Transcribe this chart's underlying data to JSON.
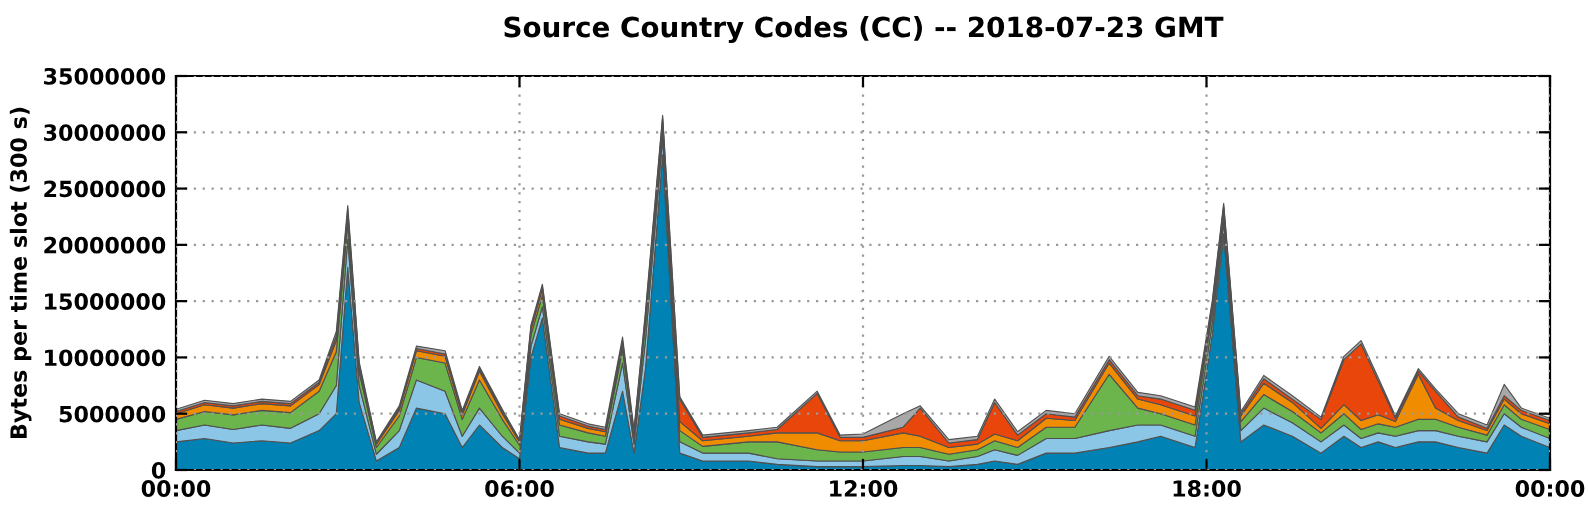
{
  "chart_data": {
    "type": "area",
    "stacked": true,
    "title": "Source Country Codes (CC) -- 2018-07-23 GMT",
    "ylabel": "Bytes per time slot (300 s)",
    "x": [
      0.0,
      0.5,
      1.0,
      1.5,
      2.0,
      2.5,
      2.8,
      3.0,
      3.2,
      3.5,
      3.9,
      4.2,
      4.7,
      5.0,
      5.3,
      5.7,
      6.0,
      6.2,
      6.4,
      6.7,
      7.2,
      7.5,
      7.8,
      8.0,
      8.2,
      8.5,
      8.8,
      9.2,
      10.0,
      10.5,
      11.2,
      11.6,
      12.0,
      12.7,
      13.0,
      13.5,
      14.0,
      14.3,
      14.7,
      15.2,
      15.7,
      16.3,
      16.8,
      17.2,
      17.8,
      18.1,
      18.3,
      18.6,
      19.0,
      19.5,
      20.0,
      20.4,
      20.7,
      21.0,
      21.3,
      21.7,
      22.0,
      22.4,
      22.9,
      23.2,
      23.5,
      24.0
    ],
    "series": [
      {
        "color": "#0083b4",
        "values": [
          2500000,
          2800000,
          2400000,
          2600000,
          2400000,
          3500000,
          5000000,
          18000000,
          6000000,
          800000,
          2000000,
          5500000,
          5000000,
          2000000,
          4000000,
          2000000,
          1000000,
          10000000,
          13500000,
          2000000,
          1500000,
          1500000,
          7000000,
          1500000,
          9000000,
          28000000,
          1500000,
          800000,
          800000,
          500000,
          300000,
          300000,
          300000,
          400000,
          400000,
          300000,
          500000,
          800000,
          500000,
          1500000,
          1500000,
          2000000,
          2500000,
          3000000,
          2000000,
          12000000,
          21000000,
          2500000,
          4000000,
          3000000,
          1500000,
          3000000,
          2000000,
          2500000,
          2000000,
          2500000,
          2500000,
          2000000,
          1500000,
          4000000,
          3000000,
          2000000
        ]
      },
      {
        "color": "#8cc6e6",
        "values": [
          1000000,
          1200000,
          1200000,
          1400000,
          1300000,
          1500000,
          2500000,
          2500000,
          1500000,
          600000,
          1500000,
          2500000,
          2000000,
          1000000,
          1500000,
          1000000,
          500000,
          1000000,
          1000000,
          1000000,
          1000000,
          800000,
          2500000,
          800000,
          2500000,
          1500000,
          1000000,
          700000,
          700000,
          500000,
          500000,
          500000,
          500000,
          800000,
          800000,
          500000,
          700000,
          1000000,
          800000,
          1300000,
          1300000,
          1500000,
          1500000,
          1000000,
          1000000,
          1000000,
          1000000,
          1000000,
          1500000,
          1200000,
          1000000,
          1000000,
          800000,
          800000,
          1000000,
          1000000,
          1000000,
          1000000,
          1000000,
          1000000,
          800000,
          800000
        ]
      },
      {
        "color": "#6cb44c",
        "values": [
          1000000,
          1200000,
          1300000,
          1300000,
          1400000,
          2000000,
          3000000,
          1500000,
          1200000,
          600000,
          1300000,
          2000000,
          2500000,
          1500000,
          2500000,
          1500000,
          700000,
          1000000,
          1000000,
          1000000,
          800000,
          700000,
          1200000,
          600000,
          1500000,
          1000000,
          1000000,
          600000,
          1000000,
          1500000,
          1000000,
          800000,
          800000,
          800000,
          800000,
          600000,
          600000,
          800000,
          700000,
          1000000,
          1000000,
          5000000,
          1500000,
          1000000,
          1000000,
          1000000,
          800000,
          800000,
          1200000,
          1000000,
          800000,
          1000000,
          800000,
          800000,
          800000,
          1000000,
          1000000,
          800000,
          600000,
          800000,
          700000,
          800000
        ]
      },
      {
        "color": "#f08c00",
        "values": [
          500000,
          600000,
          600000,
          600000,
          600000,
          600000,
          1000000,
          800000,
          500000,
          300000,
          500000,
          600000,
          600000,
          400000,
          800000,
          500000,
          300000,
          500000,
          600000,
          500000,
          400000,
          400000,
          500000,
          300000,
          500000,
          500000,
          800000,
          500000,
          500000,
          800000,
          1500000,
          1000000,
          1000000,
          1300000,
          1000000,
          600000,
          500000,
          600000,
          600000,
          800000,
          600000,
          1000000,
          800000,
          800000,
          800000,
          600000,
          500000,
          500000,
          1000000,
          800000,
          400000,
          800000,
          800000,
          800000,
          500000,
          4000000,
          1000000,
          600000,
          400000,
          500000,
          500000,
          500000
        ]
      },
      {
        "color": "#e8460a",
        "values": [
          200000,
          200000,
          200000,
          200000,
          200000,
          200000,
          400000,
          400000,
          200000,
          100000,
          200000,
          200000,
          200000,
          200000,
          200000,
          200000,
          100000,
          200000,
          200000,
          300000,
          200000,
          200000,
          300000,
          200000,
          300000,
          300000,
          2000000,
          300000,
          300000,
          300000,
          3500000,
          300000,
          300000,
          500000,
          2500000,
          400000,
          400000,
          2800000,
          500000,
          400000,
          300000,
          300000,
          300000,
          500000,
          500000,
          200000,
          200000,
          200000,
          400000,
          300000,
          800000,
          4000000,
          6800000,
          3000000,
          300000,
          300000,
          1500000,
          300000,
          200000,
          300000,
          300000,
          300000
        ]
      },
      {
        "color": "#a8a8a8",
        "values": [
          200000,
          200000,
          200000,
          200000,
          200000,
          200000,
          400000,
          300000,
          200000,
          100000,
          200000,
          200000,
          300000,
          200000,
          200000,
          200000,
          100000,
          200000,
          200000,
          200000,
          200000,
          200000,
          300000,
          200000,
          300000,
          200000,
          200000,
          200000,
          200000,
          200000,
          200000,
          200000,
          300000,
          1200000,
          200000,
          300000,
          300000,
          300000,
          300000,
          300000,
          300000,
          300000,
          300000,
          300000,
          300000,
          200000,
          200000,
          200000,
          300000,
          300000,
          200000,
          300000,
          300000,
          300000,
          200000,
          200000,
          200000,
          300000,
          300000,
          1000000,
          200000,
          200000
        ]
      }
    ],
    "xlim": [
      0,
      24
    ],
    "xticks": [
      {
        "value": 0,
        "label": "00:00"
      },
      {
        "value": 6,
        "label": "06:00"
      },
      {
        "value": 12,
        "label": "12:00"
      },
      {
        "value": 18,
        "label": "18:00"
      },
      {
        "value": 24,
        "label": "00:00"
      }
    ],
    "ylim": [
      0,
      35000000
    ],
    "yticks": [
      0,
      5000000,
      10000000,
      15000000,
      20000000,
      25000000,
      30000000,
      35000000
    ],
    "grid": true,
    "legend": false
  }
}
